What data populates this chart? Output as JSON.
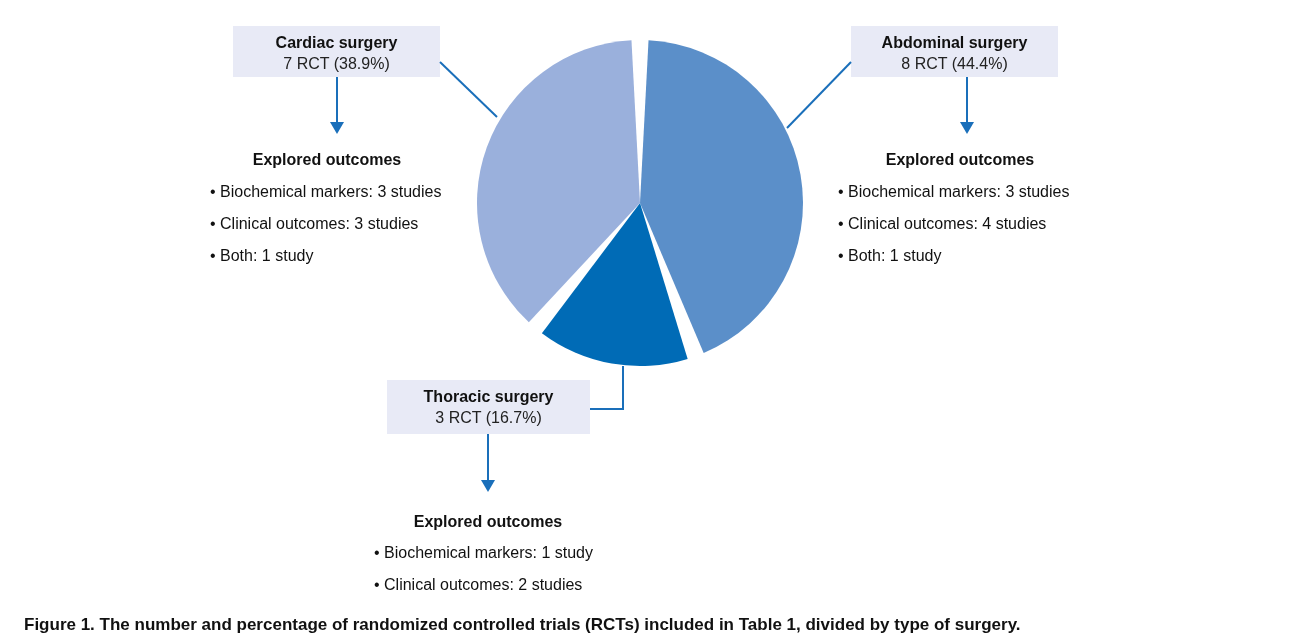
{
  "chart_data": {
    "type": "pie",
    "categories": [
      "Abdominal surgery",
      "Thoracic surgery",
      "Cardiac surgery"
    ],
    "values": [
      8,
      3,
      7
    ],
    "colors": [
      "#5b8fc9",
      "#006bb6",
      "#9ab0dc"
    ],
    "value_labels": [
      "8 RCT (44.4%)",
      "3 RCT (16.7%)",
      "7 RCT (38.9%)"
    ],
    "annotations": [
      "Explored outcomes",
      "• Biochemical markers: 3 studies",
      "• Clinical outcomes: 3 studies",
      "• Both: 1 study",
      "Explored outcomes",
      "• Biochemical markers: 3 studies",
      "• Clinical outcomes: 4 studies",
      "• Both: 1 study",
      "Explored outcomes",
      "• Biochemical markers: 1 study",
      "• Clinical outcomes: 2 studies",
      "Figure 1. The number and percentage of randomized controlled trials (RCTs) included in Table 1, divided by type of surgery."
    ]
  }
}
